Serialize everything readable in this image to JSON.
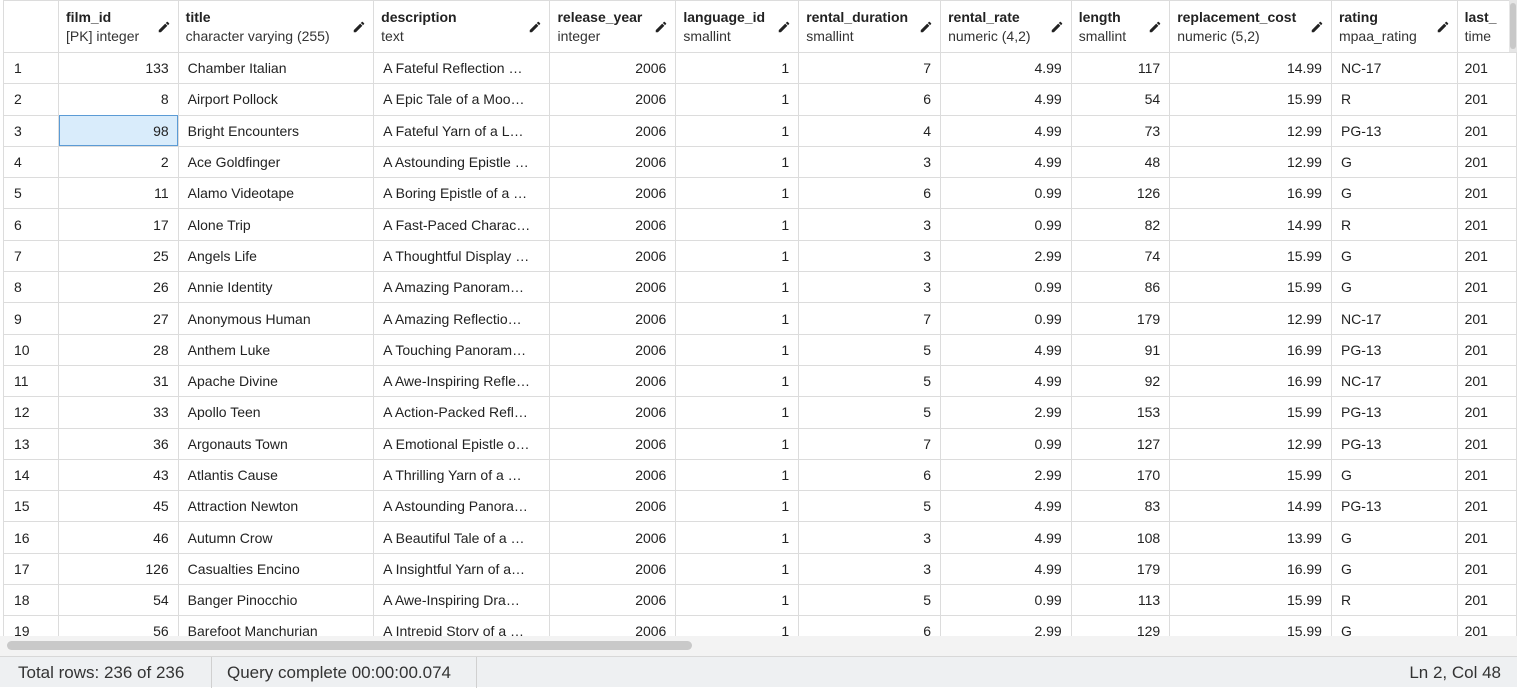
{
  "columns": [
    {
      "name": "film_id",
      "type": "[PK] integer",
      "align": "num"
    },
    {
      "name": "title",
      "type": "character varying (255)",
      "align": "txt"
    },
    {
      "name": "description",
      "type": "text",
      "align": "desc"
    },
    {
      "name": "release_year",
      "type": "integer",
      "align": "num"
    },
    {
      "name": "language_id",
      "type": "smallint",
      "align": "num"
    },
    {
      "name": "rental_duration",
      "type": "smallint",
      "align": "num"
    },
    {
      "name": "rental_rate",
      "type": "numeric (4,2)",
      "align": "num"
    },
    {
      "name": "length",
      "type": "smallint",
      "align": "num"
    },
    {
      "name": "replacement_cost",
      "type": "numeric (5,2)",
      "align": "num"
    },
    {
      "name": "rating",
      "type": "mpaa_rating",
      "align": "txt"
    },
    {
      "name": "last_",
      "type": "time",
      "align": "last"
    }
  ],
  "rows": [
    [
      "1",
      "133",
      "Chamber Italian",
      "A Fateful Reflection …",
      "2006",
      "1",
      "7",
      "4.99",
      "117",
      "14.99",
      "NC-17",
      "201"
    ],
    [
      "2",
      "8",
      "Airport Pollock",
      "A Epic Tale of a Moo…",
      "2006",
      "1",
      "6",
      "4.99",
      "54",
      "15.99",
      "R",
      "201"
    ],
    [
      "3",
      "98",
      "Bright Encounters",
      "A Fateful Yarn of a L…",
      "2006",
      "1",
      "4",
      "4.99",
      "73",
      "12.99",
      "PG-13",
      "201"
    ],
    [
      "4",
      "2",
      "Ace Goldfinger",
      "A Astounding Epistle …",
      "2006",
      "1",
      "3",
      "4.99",
      "48",
      "12.99",
      "G",
      "201"
    ],
    [
      "5",
      "11",
      "Alamo Videotape",
      "A Boring Epistle of a …",
      "2006",
      "1",
      "6",
      "0.99",
      "126",
      "16.99",
      "G",
      "201"
    ],
    [
      "6",
      "17",
      "Alone Trip",
      "A Fast-Paced Charac…",
      "2006",
      "1",
      "3",
      "0.99",
      "82",
      "14.99",
      "R",
      "201"
    ],
    [
      "7",
      "25",
      "Angels Life",
      "A Thoughtful Display …",
      "2006",
      "1",
      "3",
      "2.99",
      "74",
      "15.99",
      "G",
      "201"
    ],
    [
      "8",
      "26",
      "Annie Identity",
      "A Amazing Panoram…",
      "2006",
      "1",
      "3",
      "0.99",
      "86",
      "15.99",
      "G",
      "201"
    ],
    [
      "9",
      "27",
      "Anonymous Human",
      "A Amazing Reflectio…",
      "2006",
      "1",
      "7",
      "0.99",
      "179",
      "12.99",
      "NC-17",
      "201"
    ],
    [
      "10",
      "28",
      "Anthem Luke",
      "A Touching Panoram…",
      "2006",
      "1",
      "5",
      "4.99",
      "91",
      "16.99",
      "PG-13",
      "201"
    ],
    [
      "11",
      "31",
      "Apache Divine",
      "A Awe-Inspiring Refle…",
      "2006",
      "1",
      "5",
      "4.99",
      "92",
      "16.99",
      "NC-17",
      "201"
    ],
    [
      "12",
      "33",
      "Apollo Teen",
      "A Action-Packed Refl…",
      "2006",
      "1",
      "5",
      "2.99",
      "153",
      "15.99",
      "PG-13",
      "201"
    ],
    [
      "13",
      "36",
      "Argonauts Town",
      "A Emotional Epistle o…",
      "2006",
      "1",
      "7",
      "0.99",
      "127",
      "12.99",
      "PG-13",
      "201"
    ],
    [
      "14",
      "43",
      "Atlantis Cause",
      "A Thrilling Yarn of a …",
      "2006",
      "1",
      "6",
      "2.99",
      "170",
      "15.99",
      "G",
      "201"
    ],
    [
      "15",
      "45",
      "Attraction Newton",
      "A Astounding Panora…",
      "2006",
      "1",
      "5",
      "4.99",
      "83",
      "14.99",
      "PG-13",
      "201"
    ],
    [
      "16",
      "46",
      "Autumn Crow",
      "A Beautiful Tale of a …",
      "2006",
      "1",
      "3",
      "4.99",
      "108",
      "13.99",
      "G",
      "201"
    ],
    [
      "17",
      "126",
      "Casualties Encino",
      "A Insightful Yarn of a…",
      "2006",
      "1",
      "3",
      "4.99",
      "179",
      "16.99",
      "G",
      "201"
    ],
    [
      "18",
      "54",
      "Banger Pinocchio",
      "A Awe-Inspiring Dra…",
      "2006",
      "1",
      "5",
      "0.99",
      "113",
      "15.99",
      "R",
      "201"
    ],
    [
      "19",
      "56",
      "Barefoot Manchurian",
      "A Intrepid Story of a …",
      "2006",
      "1",
      "6",
      "2.99",
      "129",
      "15.99",
      "G",
      "201"
    ]
  ],
  "selected_cell": {
    "row": 2,
    "col": 1
  },
  "status": {
    "total_rows": "Total rows: 236 of 236",
    "query": "Query complete 00:00:00.074",
    "cursor": "Ln 2, Col 48"
  },
  "colors": {
    "selection_bg": "#d9ecfb",
    "selection_border": "#5b9bd5",
    "statusbar_bg": "#eef0f2"
  },
  "icons": {
    "column_edit": "pencil-icon"
  }
}
